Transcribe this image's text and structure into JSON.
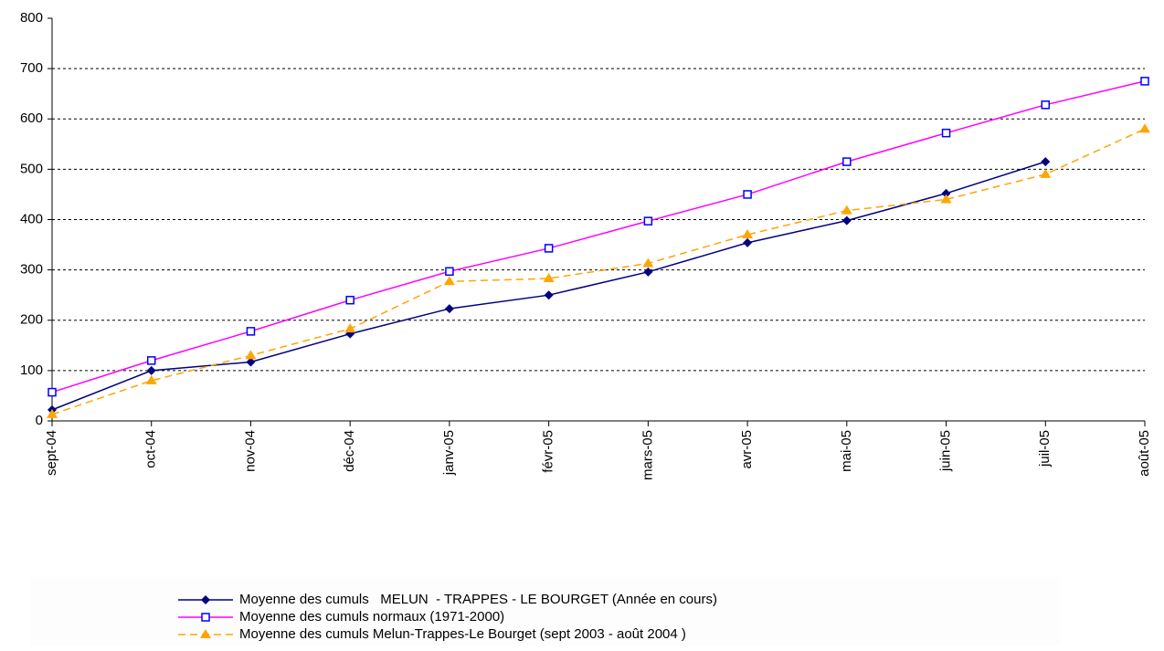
{
  "chart_data": {
    "type": "line",
    "categories": [
      "sept-04",
      "oct-04",
      "nov-04",
      "déc-04",
      "janv-05",
      "févr-05",
      "mars-05",
      "avr-05",
      "mai-05",
      "juin-05",
      "juil-05",
      "août-05"
    ],
    "series": [
      {
        "name": "Moyenne des cumuls   MELUN  - TRAPPES - LE BOURGET (Année en cours)",
        "color": "#000080",
        "marker": "diamond",
        "marker_color": "#000080",
        "dashed": false,
        "values": [
          22,
          100,
          117,
          173,
          223,
          250,
          296,
          354,
          398,
          452,
          515,
          null
        ]
      },
      {
        "name": "Moyenne des cumuls normaux (1971-2000)",
        "color": "#ff00ff",
        "marker": "square",
        "marker_color": "#0000ff",
        "dashed": false,
        "values": [
          57,
          120,
          178,
          240,
          297,
          343,
          397,
          450,
          515,
          572,
          628,
          675
        ]
      },
      {
        "name": "Moyenne des cumuls Melun-Trappes-Le Bourget (sept 2003 - août 2004 )",
        "color": "#ffa500",
        "marker": "triangle",
        "marker_color": "#ffa500",
        "dashed": true,
        "values": [
          13,
          80,
          130,
          183,
          277,
          283,
          313,
          370,
          418,
          440,
          490,
          580
        ]
      }
    ],
    "ylim": [
      0,
      800
    ],
    "yticks": [
      0,
      100,
      200,
      300,
      400,
      500,
      600,
      700,
      800
    ],
    "grid": true,
    "legend": "bottom"
  }
}
